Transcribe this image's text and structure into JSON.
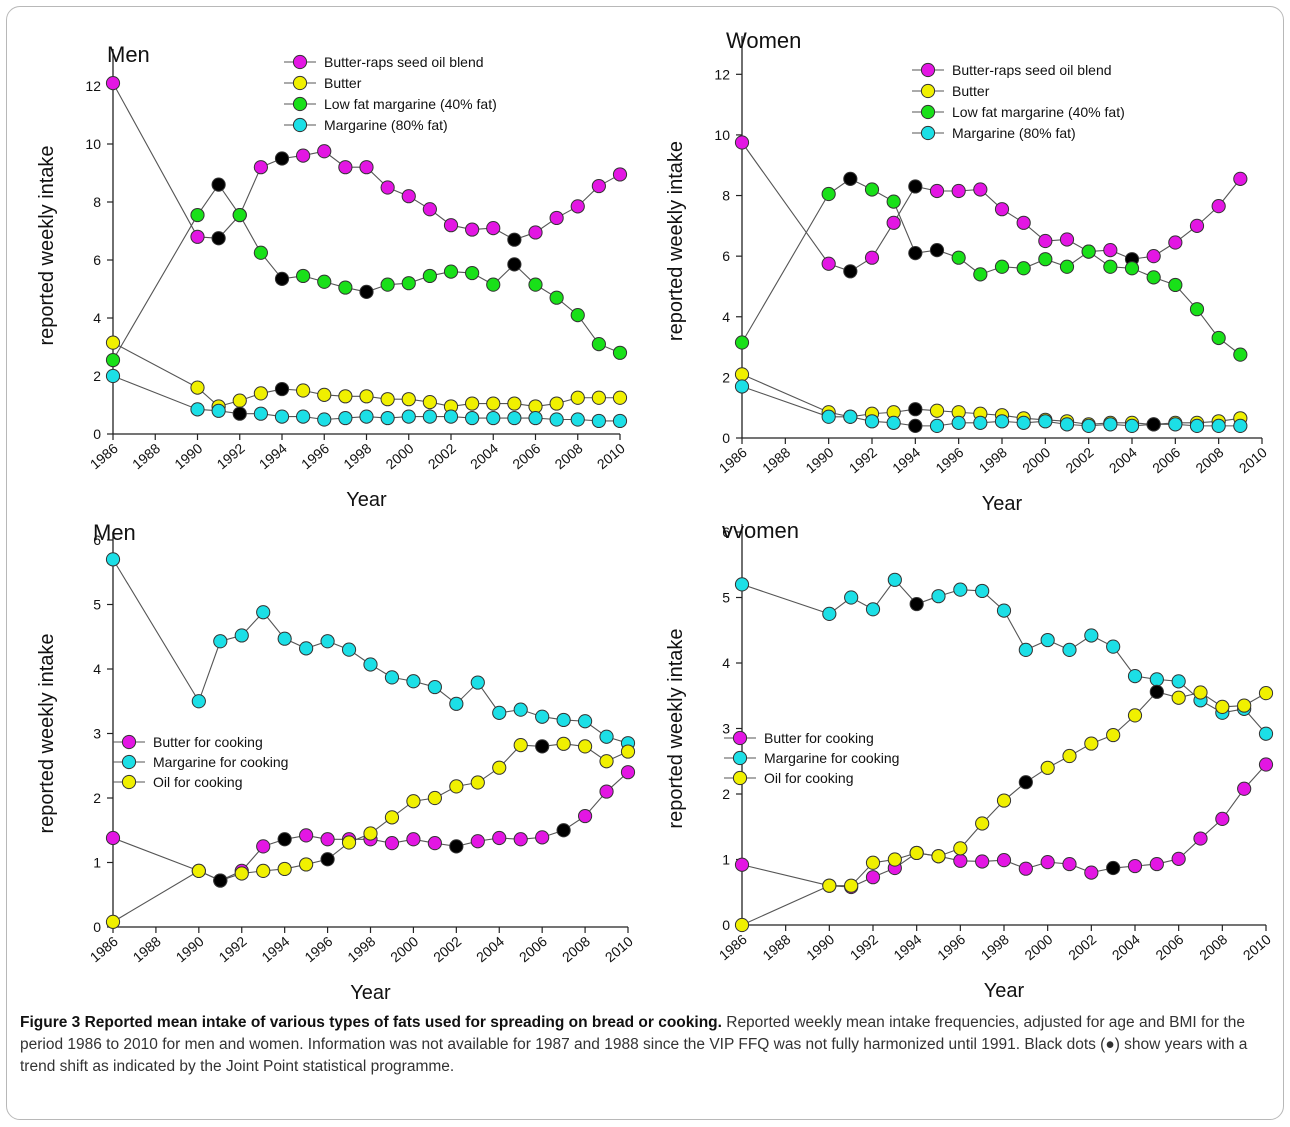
{
  "chart_data": [
    {
      "type": "line",
      "title": "Men",
      "xlabel": "Year",
      "ylabel": "reported weekly intake",
      "xlim": [
        1986,
        2010
      ],
      "ylim": [
        0,
        13
      ],
      "yticks": [
        0,
        2,
        4,
        6,
        8,
        10,
        12
      ],
      "xticks": [
        "1986",
        "1988",
        "1990",
        "1992",
        "1994",
        "1996",
        "1998",
        "2000",
        "2002",
        "2004",
        "2006",
        "2008",
        "2010"
      ],
      "legend_position": "top-center",
      "series": [
        {
          "name": "Butter-raps seed oil  blend",
          "color": "#e316e3",
          "x": [
            1986,
            1990,
            1991,
            1992,
            1993,
            1994,
            1995,
            1996,
            1997,
            1998,
            1999,
            2000,
            2001,
            2002,
            2003,
            2004,
            2005,
            2006,
            2007,
            2008,
            2009,
            2010
          ],
          "y": [
            12.1,
            6.8,
            6.75,
            7.55,
            9.2,
            9.5,
            9.6,
            9.75,
            9.2,
            9.2,
            8.5,
            8.2,
            7.75,
            7.2,
            7.05,
            7.1,
            6.7,
            6.95,
            7.45,
            7.85,
            8.55,
            8.95
          ],
          "black": [
            1991,
            1994,
            2005
          ]
        },
        {
          "name": "Butter",
          "color": "#f0f000",
          "x": [
            1986,
            1990,
            1991,
            1992,
            1993,
            1994,
            1995,
            1996,
            1997,
            1998,
            1999,
            2000,
            2001,
            2002,
            2003,
            2004,
            2005,
            2006,
            2007,
            2008,
            2009,
            2010
          ],
          "y": [
            3.15,
            1.6,
            0.95,
            1.15,
            1.4,
            1.55,
            1.5,
            1.35,
            1.3,
            1.3,
            1.2,
            1.2,
            1.1,
            0.95,
            1.05,
            1.05,
            1.05,
            0.95,
            1.05,
            1.25,
            1.25,
            1.25
          ],
          "black": [
            1994
          ]
        },
        {
          "name": "Low fat margarine (40% fat)",
          "color": "#19e019",
          "x": [
            1986,
            1990,
            1991,
            1992,
            1993,
            1994,
            1995,
            1996,
            1997,
            1998,
            1999,
            2000,
            2001,
            2002,
            2003,
            2004,
            2005,
            2006,
            2007,
            2008,
            2009,
            2010
          ],
          "y": [
            2.55,
            7.55,
            8.6,
            7.55,
            6.25,
            5.35,
            5.45,
            5.25,
            5.05,
            4.9,
            5.15,
            5.2,
            5.45,
            5.6,
            5.55,
            5.15,
            5.85,
            5.15,
            4.7,
            4.1,
            3.1,
            2.8
          ],
          "black": [
            1991,
            1994,
            1998,
            2005
          ]
        },
        {
          "name": "Margarine (80% fat)",
          "color": "#1cdfe6",
          "x": [
            1986,
            1990,
            1991,
            1992,
            1993,
            1994,
            1995,
            1996,
            1997,
            1998,
            1999,
            2000,
            2001,
            2002,
            2003,
            2004,
            2005,
            2006,
            2007,
            2008,
            2009,
            2010
          ],
          "y": [
            2.0,
            0.85,
            0.8,
            0.7,
            0.7,
            0.6,
            0.6,
            0.5,
            0.55,
            0.6,
            0.55,
            0.6,
            0.6,
            0.6,
            0.55,
            0.55,
            0.55,
            0.55,
            0.5,
            0.5,
            0.45,
            0.45
          ],
          "black": [
            1992
          ]
        }
      ]
    },
    {
      "type": "line",
      "title": "Women",
      "xlabel": "Year",
      "ylabel": "reported weekly intake",
      "xlim": [
        1986,
        2010
      ],
      "ylim": [
        0,
        13
      ],
      "yticks": [
        0,
        2,
        4,
        6,
        8,
        10,
        12
      ],
      "xticks": [
        "1986",
        "1988",
        "1990",
        "1992",
        "1994",
        "1996",
        "1998",
        "2000",
        "2002",
        "2004",
        "2006",
        "2008",
        "2010"
      ],
      "legend_position": "top-right",
      "series": [
        {
          "name": "Butter-raps seed oil blend",
          "color": "#e316e3",
          "x": [
            1986,
            1990,
            1991,
            1992,
            1993,
            1994,
            1995,
            1996,
            1997,
            1998,
            1999,
            2000,
            2001,
            2002,
            2003,
            2004,
            2005,
            2006,
            2007,
            2008,
            2009
          ],
          "y": [
            9.75,
            5.75,
            5.5,
            5.95,
            7.1,
            8.3,
            8.15,
            8.15,
            8.2,
            7.55,
            7.1,
            6.5,
            6.55,
            6.15,
            6.2,
            5.9,
            6.0,
            6.45,
            7.0,
            7.65,
            8.55
          ],
          "black": [
            1991,
            1994,
            2002,
            2004
          ]
        },
        {
          "name": "Butter",
          "color": "#f0f000",
          "x": [
            1986,
            1990,
            1991,
            1992,
            1993,
            1994,
            1995,
            1996,
            1997,
            1998,
            1999,
            2000,
            2001,
            2002,
            2003,
            2004,
            2005,
            2006,
            2007,
            2008,
            2009
          ],
          "y": [
            2.1,
            0.85,
            0.7,
            0.8,
            0.85,
            0.95,
            0.9,
            0.85,
            0.8,
            0.75,
            0.65,
            0.6,
            0.55,
            0.45,
            0.5,
            0.5,
            0.45,
            0.5,
            0.5,
            0.55,
            0.65
          ],
          "black": [
            1994
          ]
        },
        {
          "name": "Low fat margarine (40% fat)",
          "color": "#19e019",
          "x": [
            1986,
            1990,
            1991,
            1992,
            1993,
            1994,
            1995,
            1996,
            1997,
            1998,
            1999,
            2000,
            2001,
            2002,
            2003,
            2004,
            2005,
            2006,
            2007,
            2008,
            2009
          ],
          "y": [
            3.15,
            8.05,
            8.55,
            8.2,
            7.8,
            6.1,
            6.2,
            5.95,
            5.4,
            5.65,
            5.6,
            5.9,
            5.65,
            6.15,
            5.65,
            5.6,
            5.3,
            5.05,
            4.25,
            3.3,
            2.75
          ],
          "black": [
            1991,
            1994,
            1995
          ]
        },
        {
          "name": "Margarine (80% fat)",
          "color": "#1cdfe6",
          "x": [
            1986,
            1990,
            1991,
            1992,
            1993,
            1994,
            1995,
            1996,
            1997,
            1998,
            1999,
            2000,
            2001,
            2002,
            2003,
            2004,
            2005,
            2006,
            2007,
            2008,
            2009
          ],
          "y": [
            1.7,
            0.7,
            0.7,
            0.55,
            0.5,
            0.4,
            0.4,
            0.5,
            0.5,
            0.55,
            0.5,
            0.55,
            0.45,
            0.4,
            0.45,
            0.4,
            0.45,
            0.45,
            0.4,
            0.4,
            0.4
          ],
          "black": [
            1994,
            2005
          ]
        }
      ]
    },
    {
      "type": "line",
      "title": "Men",
      "xlabel": "Year",
      "ylabel": "reported weekly intake",
      "xlim": [
        1986,
        2010
      ],
      "ylim": [
        0,
        6
      ],
      "yticks": [
        0,
        1,
        2,
        3,
        4,
        5,
        6
      ],
      "xticks": [
        "1986",
        "1988",
        "1990",
        "1992",
        "1994",
        "1996",
        "1998",
        "2000",
        "2002",
        "2004",
        "2006",
        "2008",
        "2010"
      ],
      "legend_position": "middle-left",
      "series": [
        {
          "name": "Butter for cooking",
          "color": "#e316e3",
          "x": [
            1986,
            1990,
            1991,
            1992,
            1993,
            1994,
            1995,
            1996,
            1997,
            1998,
            1999,
            2000,
            2001,
            2002,
            2003,
            2004,
            2005,
            2006,
            2007,
            2008,
            2009,
            2010
          ],
          "y": [
            1.38,
            0.87,
            0.72,
            0.87,
            1.25,
            1.36,
            1.42,
            1.36,
            1.36,
            1.36,
            1.3,
            1.36,
            1.3,
            1.25,
            1.33,
            1.38,
            1.36,
            1.39,
            1.5,
            1.72,
            2.1,
            2.4
          ],
          "black": [
            1991,
            1994,
            2002,
            2007
          ]
        },
        {
          "name": "Margarine for cooking",
          "color": "#1cdfe6",
          "x": [
            1986,
            1990,
            1991,
            1992,
            1993,
            1994,
            1995,
            1996,
            1997,
            1998,
            1999,
            2000,
            2001,
            2002,
            2003,
            2004,
            2005,
            2006,
            2007,
            2008,
            2009,
            2010
          ],
          "y": [
            5.7,
            3.5,
            4.43,
            4.52,
            4.88,
            4.47,
            4.32,
            4.43,
            4.3,
            4.07,
            3.87,
            3.81,
            3.72,
            3.46,
            3.79,
            3.32,
            3.37,
            3.26,
            3.21,
            3.19,
            2.95,
            2.85
          ],
          "black": []
        },
        {
          "name": "Oil for cooking",
          "color": "#f0f000",
          "x": [
            1986,
            1990,
            1991,
            1992,
            1993,
            1994,
            1995,
            1996,
            1997,
            1998,
            1999,
            2000,
            2001,
            2002,
            2003,
            2004,
            2005,
            2006,
            2007,
            2008,
            2009,
            2010
          ],
          "y": [
            0.08,
            0.87,
            0.72,
            0.83,
            0.87,
            0.9,
            0.97,
            1.05,
            1.31,
            1.45,
            1.7,
            1.95,
            2.0,
            2.18,
            2.24,
            2.47,
            2.82,
            2.8,
            2.84,
            2.8,
            2.57,
            2.72
          ],
          "black": [
            1991,
            1996,
            2006
          ]
        }
      ]
    },
    {
      "type": "line",
      "title": "vvomen",
      "xlabel": "Year",
      "ylabel": "reported weekly intake",
      "xlim": [
        1986,
        2010
      ],
      "ylim": [
        0,
        6
      ],
      "yticks": [
        0,
        1,
        2,
        3,
        4,
        5,
        6
      ],
      "xticks": [
        "1986",
        "1988",
        "1990",
        "1992",
        "1994",
        "1996",
        "1998",
        "2000",
        "2002",
        "2004",
        "2006",
        "2008",
        "2010"
      ],
      "legend_position": "middle-left",
      "series": [
        {
          "name": "Butter for cooking",
          "color": "#e316e3",
          "x": [
            1986,
            1990,
            1991,
            1992,
            1993,
            1994,
            1995,
            1996,
            1997,
            1998,
            1999,
            2000,
            2001,
            2002,
            2003,
            2004,
            2005,
            2006,
            2007,
            2008,
            2009,
            2010
          ],
          "y": [
            0.92,
            0.6,
            0.58,
            0.73,
            0.87,
            1.1,
            1.05,
            0.98,
            0.97,
            0.99,
            0.86,
            0.96,
            0.93,
            0.8,
            0.87,
            0.9,
            0.93,
            1.01,
            1.32,
            1.62,
            2.08,
            2.45
          ],
          "black": [
            1994,
            1995,
            2003
          ]
        },
        {
          "name": "Margarine for cooking",
          "color": "#1cdfe6",
          "x": [
            1986,
            1990,
            1991,
            1992,
            1993,
            1994,
            1995,
            1996,
            1997,
            1998,
            1999,
            2000,
            2001,
            2002,
            2003,
            2004,
            2005,
            2006,
            2007,
            2008,
            2009,
            2010
          ],
          "y": [
            5.2,
            4.75,
            5.0,
            4.82,
            5.27,
            4.9,
            5.02,
            5.12,
            5.1,
            4.8,
            4.2,
            4.35,
            4.2,
            4.42,
            4.25,
            3.8,
            3.75,
            3.72,
            3.43,
            3.24,
            3.3,
            2.92
          ],
          "black": [
            1994
          ]
        },
        {
          "name": "Oil for cooking",
          "color": "#f0f000",
          "x": [
            1986,
            1990,
            1991,
            1992,
            1993,
            1994,
            1995,
            1996,
            1997,
            1998,
            1999,
            2000,
            2001,
            2002,
            2003,
            2004,
            2005,
            2006,
            2007,
            2008,
            2009,
            2010
          ],
          "y": [
            0.0,
            0.6,
            0.6,
            0.95,
            1.0,
            1.1,
            1.05,
            1.17,
            1.55,
            1.9,
            2.18,
            2.4,
            2.58,
            2.77,
            2.9,
            3.2,
            3.56,
            3.47,
            3.55,
            3.33,
            3.35,
            3.54
          ],
          "black": [
            1999,
            2005
          ]
        }
      ]
    }
  ],
  "caption": {
    "title": "Figure 3 Reported mean intake of various types of fats used for spreading on bread or cooking.",
    "body": " Reported weekly mean intake frequencies, adjusted for age and BMI for the period 1986 to 2010 for men and women. Information was not available for 1987 and 1988 since the VIP FFQ was not fully harmonized until 1991. Black dots (●) show years with a trend shift as indicated by the Joint Point statistical programme."
  }
}
